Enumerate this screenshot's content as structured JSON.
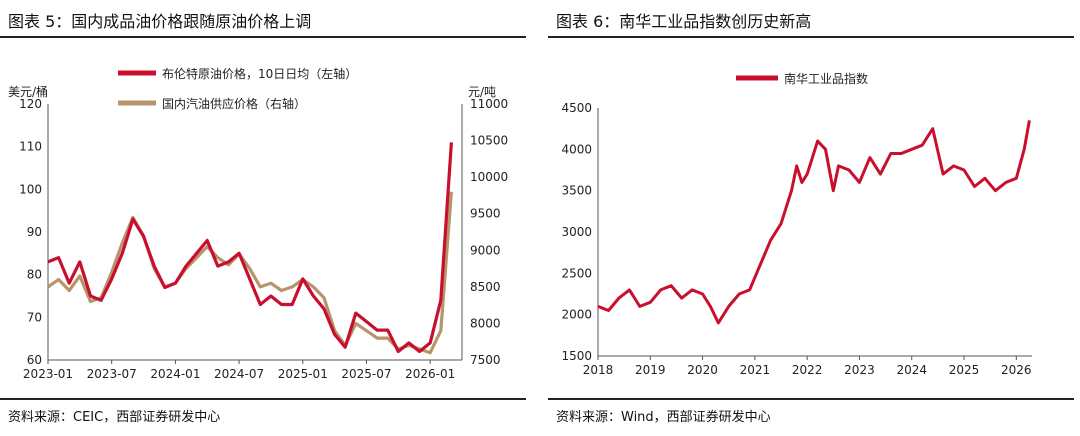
{
  "chart_data": [
    {
      "type": "line",
      "title": "图表 5：国内成品油价格跟随原油价格上调",
      "source": "资料来源：CEIC，西部证券研发中心",
      "left_unit": "美元/桶",
      "right_unit": "元/吨",
      "x_ticks": [
        "2023-01",
        "2023-07",
        "2024-01",
        "2024-07",
        "2025-01",
        "2025-07",
        "2026-01"
      ],
      "x_range": [
        "2023-01",
        "2026-04"
      ],
      "left_ylim": [
        60,
        120
      ],
      "left_ticks": [
        60,
        70,
        80,
        90,
        100,
        110,
        120
      ],
      "right_ylim": [
        7500,
        11000
      ],
      "right_ticks": [
        7500,
        8000,
        8500,
        9000,
        9500,
        10000,
        10500,
        11000
      ],
      "legend_position": "top-left",
      "series": [
        {
          "name": "布伦特原油价格，10日日均（左轴）",
          "axis": "left",
          "color": "#c8102e",
          "x": [
            "2023-01",
            "2023-02",
            "2023-03",
            "2023-04",
            "2023-05",
            "2023-06",
            "2023-07",
            "2023-08",
            "2023-09",
            "2023-10",
            "2023-11",
            "2023-12",
            "2024-01",
            "2024-02",
            "2024-03",
            "2024-04",
            "2024-05",
            "2024-06",
            "2024-07",
            "2024-08",
            "2024-09",
            "2024-10",
            "2024-11",
            "2024-12",
            "2025-01",
            "2025-02",
            "2025-03",
            "2025-04",
            "2025-05",
            "2025-06",
            "2025-07",
            "2025-08",
            "2025-09",
            "2025-10",
            "2025-11",
            "2025-12",
            "2026-01",
            "2026-02",
            "2026-03"
          ],
          "values": [
            83,
            84,
            78,
            83,
            75,
            74,
            79,
            85,
            93,
            89,
            82,
            77,
            78,
            82,
            85,
            88,
            82,
            83,
            85,
            79,
            73,
            75,
            73,
            73,
            79,
            75,
            72,
            66,
            63,
            71,
            69,
            67,
            67,
            62,
            64,
            62,
            64,
            74,
            111
          ]
        },
        {
          "name": "国内汽油供应价格（右轴）",
          "axis": "right",
          "color": "#b8946a",
          "x": [
            "2023-01",
            "2023-02",
            "2023-03",
            "2023-04",
            "2023-05",
            "2023-06",
            "2023-07",
            "2023-08",
            "2023-09",
            "2023-10",
            "2023-11",
            "2023-12",
            "2024-01",
            "2024-02",
            "2024-03",
            "2024-04",
            "2024-05",
            "2024-06",
            "2024-07",
            "2024-08",
            "2024-09",
            "2024-10",
            "2024-11",
            "2024-12",
            "2025-01",
            "2025-02",
            "2025-03",
            "2025-04",
            "2025-05",
            "2025-06",
            "2025-07",
            "2025-08",
            "2025-09",
            "2025-10",
            "2025-11",
            "2025-12",
            "2026-01",
            "2026-02",
            "2026-03"
          ],
          "values": [
            8500,
            8600,
            8450,
            8650,
            8300,
            8350,
            8700,
            9100,
            9450,
            9200,
            8750,
            8500,
            8550,
            8750,
            8900,
            9050,
            8900,
            8800,
            8950,
            8750,
            8500,
            8550,
            8450,
            8500,
            8600,
            8500,
            8350,
            7900,
            7700,
            8000,
            7900,
            7800,
            7800,
            7650,
            7700,
            7650,
            7600,
            7900,
            9800
          ]
        }
      ]
    },
    {
      "type": "line",
      "title": "图表 6：南华工业品指数创历史新高",
      "source": "资料来源：Wind，西部证券研发中心",
      "x_ticks": [
        "2018",
        "2019",
        "2020",
        "2021",
        "2022",
        "2023",
        "2024",
        "2025",
        "2026"
      ],
      "x_range": [
        2018,
        2026.3
      ],
      "ylim": [
        1500,
        4500
      ],
      "y_ticks": [
        1500,
        2000,
        2500,
        3000,
        3500,
        4000,
        4500
      ],
      "legend_position": "top-center",
      "series": [
        {
          "name": "南华工业品指数",
          "color": "#c8102e",
          "x": [
            2018.0,
            2018.2,
            2018.4,
            2018.6,
            2018.8,
            2019.0,
            2019.2,
            2019.4,
            2019.6,
            2019.8,
            2020.0,
            2020.15,
            2020.3,
            2020.5,
            2020.7,
            2020.9,
            2021.1,
            2021.3,
            2021.5,
            2021.7,
            2021.8,
            2021.9,
            2022.0,
            2022.2,
            2022.35,
            2022.5,
            2022.6,
            2022.8,
            2023.0,
            2023.2,
            2023.4,
            2023.6,
            2023.8,
            2024.0,
            2024.2,
            2024.4,
            2024.6,
            2024.8,
            2025.0,
            2025.2,
            2025.4,
            2025.6,
            2025.8,
            2026.0,
            2026.15,
            2026.25
          ],
          "values": [
            2100,
            2050,
            2200,
            2300,
            2100,
            2150,
            2300,
            2350,
            2200,
            2300,
            2250,
            2100,
            1900,
            2100,
            2250,
            2300,
            2600,
            2900,
            3100,
            3500,
            3800,
            3600,
            3700,
            4100,
            4000,
            3500,
            3800,
            3750,
            3600,
            3900,
            3700,
            3950,
            3950,
            4000,
            4050,
            4250,
            3700,
            3800,
            3750,
            3550,
            3650,
            3500,
            3600,
            3650,
            4000,
            4350
          ]
        }
      ]
    }
  ]
}
